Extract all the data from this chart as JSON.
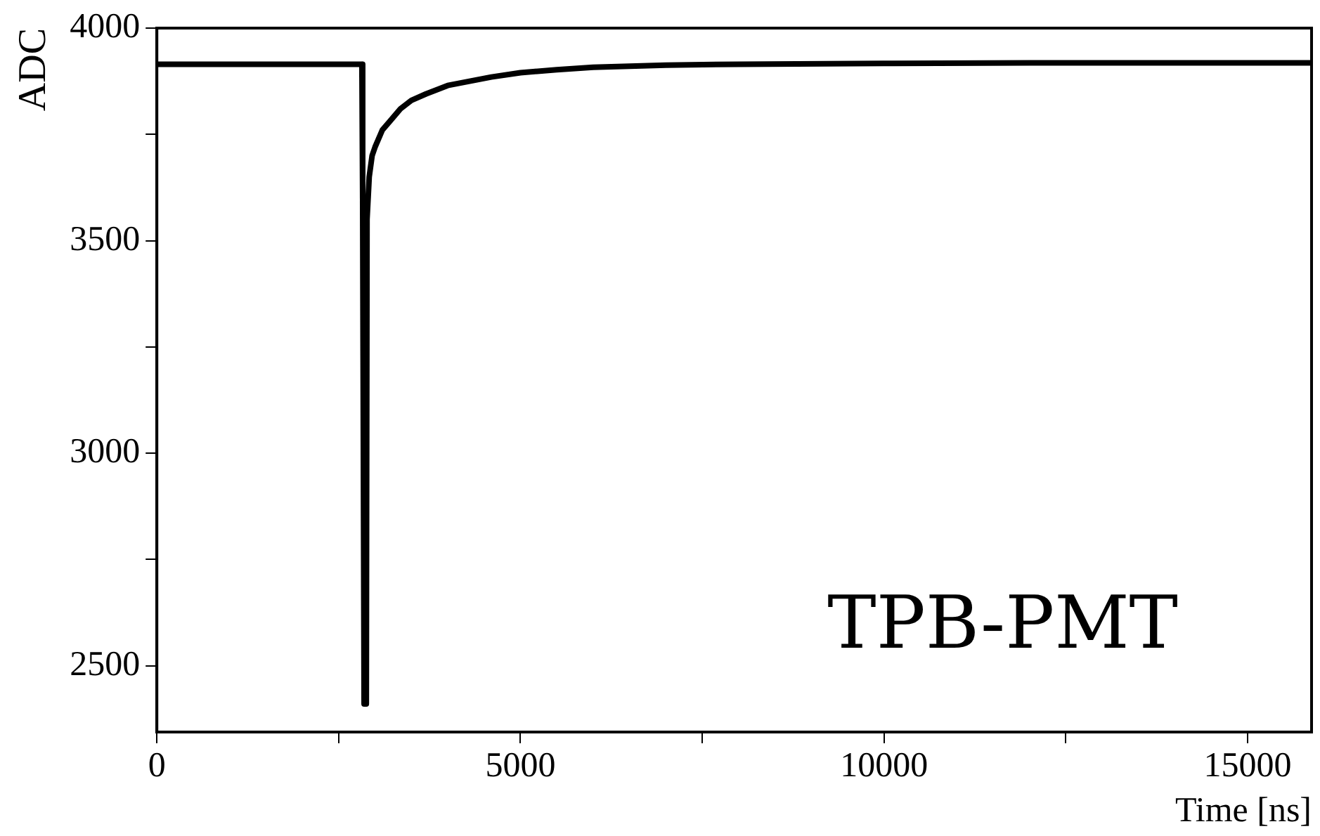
{
  "chart_data": {
    "type": "line",
    "xlabel": "Time [ns]",
    "ylabel": "ADC",
    "annotations": [
      "TPB-PMT"
    ],
    "x": [
      0,
      2820,
      2830,
      2850,
      2880,
      2890,
      2920,
      2960,
      3000,
      3100,
      3200,
      3350,
      3500,
      3700,
      4000,
      4300,
      4600,
      5000,
      5500,
      6000,
      7000,
      8000,
      10000,
      12000,
      15880
    ],
    "series": [
      {
        "color": "#000000",
        "values": [
          3915,
          3915,
          3600,
          2410,
          2410,
          3550,
          3650,
          3700,
          3720,
          3760,
          3780,
          3810,
          3830,
          3845,
          3865,
          3875,
          3885,
          3895,
          3902,
          3908,
          3913,
          3915,
          3917,
          3918,
          3918
        ]
      }
    ],
    "xlim": [
      0,
      15880
    ],
    "ylim": [
      2344,
      4000
    ],
    "xticks": [
      0,
      {
        "value": 2500,
        "label": null
      },
      5000,
      {
        "value": 7500,
        "label": null
      },
      10000,
      {
        "value": 12500,
        "label": null
      },
      15000
    ],
    "yticks": [
      {
        "value": 2500,
        "label": "2500"
      },
      {
        "value": 2750,
        "label": null
      },
      3000,
      {
        "value": 3250,
        "label": null
      },
      3500,
      {
        "value": 3750,
        "label": null
      },
      4000
    ],
    "grid": false,
    "legend": false,
    "marker": "none",
    "line_style": "solid"
  }
}
